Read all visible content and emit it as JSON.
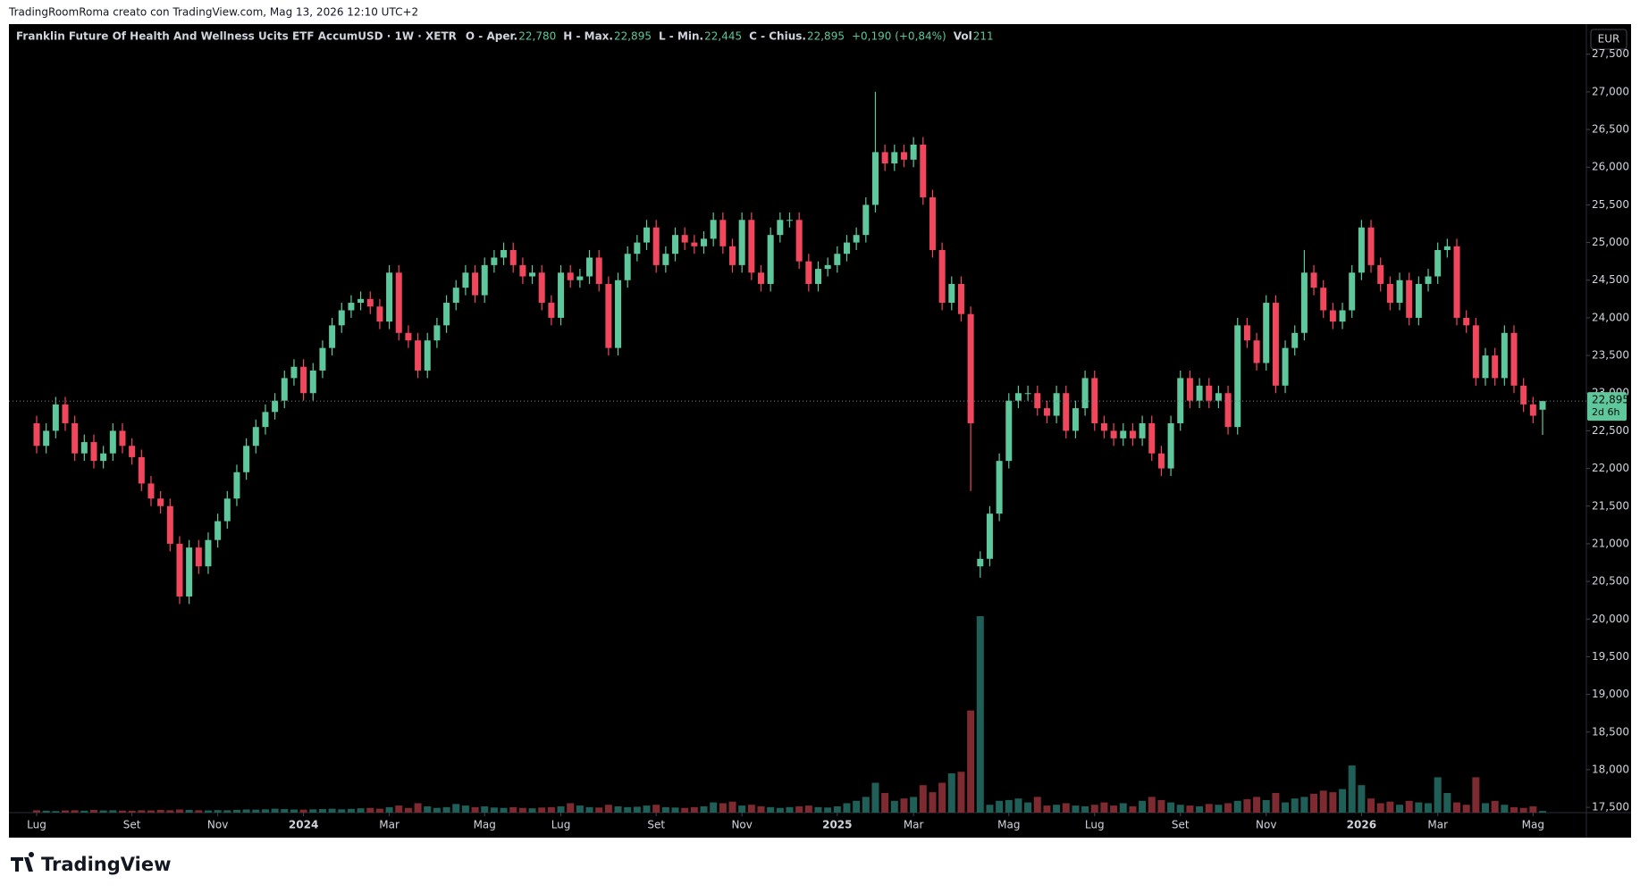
{
  "header": {
    "credit": "TradingRoomRoma creato con TradingView.com, Mag 13, 2026 12:10 UTC+2",
    "logo": "TradingView"
  },
  "legend": {
    "symbol": "Franklin Future Of Health And Wellness Ucits ETF AccumUSD · 1W · XETR",
    "open_label": "O - Aper.",
    "open": "22,780",
    "high_label": "H - Max.",
    "high": "22,895",
    "low_label": "L - Min.",
    "low": "22,445",
    "close_label": "C - Chius.",
    "close": "22,895",
    "change": "+0,190 (+0,84%)",
    "vol_label": "Vol",
    "vol": "211"
  },
  "price_scale": {
    "currency": "EUR",
    "last_price": "22,895",
    "countdown": "2d 6h"
  },
  "chart_data": {
    "type": "candlestick",
    "categories": [
      "Lug",
      null,
      null,
      null,
      null,
      null,
      null,
      null,
      null,
      null,
      "Set",
      null,
      null,
      null,
      null,
      null,
      null,
      null,
      null,
      "Nov",
      null,
      null,
      null,
      null,
      null,
      null,
      null,
      null,
      "2024",
      null,
      null,
      null,
      null,
      null,
      null,
      null,
      null,
      "Mar",
      null,
      null,
      null,
      null,
      null,
      null,
      null,
      null,
      null,
      "Mag",
      null,
      null,
      null,
      null,
      null,
      null,
      null,
      "Lug",
      null,
      null,
      null,
      null,
      null,
      null,
      null,
      null,
      null,
      "Set",
      null,
      null,
      null,
      null,
      null,
      null,
      null,
      null,
      "Nov",
      null,
      null,
      null,
      null,
      null,
      null,
      null,
      null,
      null,
      "2025",
      null,
      null,
      null,
      null,
      null,
      null,
      null,
      "Mar",
      null,
      null,
      null,
      null,
      null,
      null,
      null,
      null,
      null,
      "Mag",
      null,
      null,
      null,
      null,
      null,
      null,
      null,
      null,
      "Lug",
      null,
      null,
      null,
      null,
      null,
      null,
      null,
      null,
      "Set",
      null,
      null,
      null,
      null,
      null,
      null,
      null,
      null,
      "Nov",
      null,
      null,
      null,
      null,
      null,
      null,
      null,
      null,
      null,
      "2026",
      null,
      null,
      null,
      null,
      null,
      null,
      null,
      "Mar",
      null,
      null,
      null,
      null,
      null,
      null,
      null,
      null,
      null,
      "Mag",
      null
    ],
    "open": [
      22.6,
      22.3,
      22.5,
      22.85,
      22.6,
      22.2,
      22.35,
      22.1,
      22.2,
      22.5,
      22.3,
      22.15,
      21.8,
      21.6,
      21.5,
      21.0,
      20.3,
      20.95,
      20.7,
      21.05,
      21.3,
      21.6,
      21.95,
      22.3,
      22.55,
      22.75,
      22.9,
      23.2,
      23.35,
      23.0,
      23.3,
      23.6,
      23.9,
      24.1,
      24.2,
      24.25,
      24.15,
      23.95,
      24.6,
      23.8,
      23.7,
      23.3,
      23.7,
      23.9,
      24.2,
      24.4,
      24.6,
      24.3,
      24.7,
      24.8,
      24.9,
      24.7,
      24.55,
      24.6,
      24.2,
      24.0,
      24.6,
      24.5,
      24.55,
      24.8,
      24.45,
      23.6,
      24.5,
      24.85,
      25.0,
      25.2,
      24.7,
      24.85,
      25.1,
      25.0,
      24.95,
      25.05,
      25.3,
      24.95,
      24.7,
      25.3,
      24.6,
      24.45,
      25.1,
      25.3,
      25.3,
      24.75,
      24.45,
      24.65,
      24.7,
      24.85,
      25.0,
      25.1,
      25.5,
      26.2,
      26.05,
      26.2,
      26.1,
      26.3,
      25.6,
      24.9,
      24.2,
      24.45,
      24.05,
      20.7,
      20.8,
      21.4,
      22.1,
      22.9,
      23.0,
      23.0,
      22.8,
      22.7,
      23.0,
      22.5,
      22.8,
      23.2,
      22.6,
      22.5,
      22.4,
      22.5,
      22.4,
      22.6,
      22.2,
      22.0,
      22.6,
      23.2,
      22.9,
      23.1,
      22.9,
      23.0,
      22.55,
      23.9,
      23.7,
      23.4,
      24.2,
      23.1,
      23.6,
      23.8,
      24.6,
      24.4,
      24.1,
      23.95,
      24.1,
      24.6,
      25.2,
      24.7,
      24.45,
      24.2,
      24.5,
      24.0,
      24.45,
      24.55,
      24.9,
      24.95,
      24.0,
      23.9,
      23.2,
      23.5,
      23.2,
      23.8,
      23.1,
      22.85,
      22.78
    ],
    "high": [
      22.7,
      22.6,
      22.95,
      22.95,
      22.7,
      22.45,
      22.45,
      22.3,
      22.6,
      22.6,
      22.4,
      22.25,
      21.9,
      21.7,
      21.6,
      21.1,
      21.05,
      21.05,
      21.15,
      21.4,
      21.7,
      22.05,
      22.4,
      22.65,
      22.85,
      23.0,
      23.3,
      23.45,
      23.45,
      23.4,
      23.7,
      24.0,
      24.2,
      24.3,
      24.35,
      24.35,
      24.25,
      24.7,
      24.7,
      23.9,
      23.8,
      23.8,
      24.0,
      24.3,
      24.5,
      24.7,
      24.7,
      24.8,
      24.9,
      25.0,
      25.0,
      24.8,
      24.7,
      24.7,
      24.3,
      24.7,
      24.7,
      24.65,
      24.9,
      24.9,
      24.55,
      24.6,
      24.95,
      25.1,
      25.3,
      25.3,
      24.95,
      25.2,
      25.2,
      25.1,
      25.15,
      25.4,
      25.4,
      25.05,
      25.4,
      25.4,
      24.7,
      25.2,
      25.4,
      25.4,
      25.4,
      24.85,
      24.75,
      24.8,
      24.95,
      25.1,
      25.2,
      25.6,
      27.0,
      26.3,
      26.3,
      26.3,
      26.4,
      26.4,
      25.7,
      25.0,
      24.55,
      24.55,
      24.15,
      20.9,
      21.5,
      22.2,
      23.0,
      23.1,
      23.1,
      23.1,
      22.9,
      23.1,
      23.1,
      22.9,
      23.3,
      23.3,
      22.7,
      22.6,
      22.6,
      22.6,
      22.7,
      22.7,
      22.3,
      22.7,
      23.3,
      23.3,
      23.2,
      23.2,
      23.1,
      23.1,
      24.0,
      24.0,
      23.8,
      24.3,
      24.3,
      23.7,
      23.9,
      24.9,
      24.7,
      24.5,
      24.2,
      24.2,
      24.7,
      25.3,
      25.3,
      24.8,
      24.55,
      24.6,
      24.6,
      24.55,
      24.65,
      25.0,
      25.05,
      25.05,
      24.1,
      24.0,
      23.6,
      23.6,
      23.9,
      23.9,
      23.2,
      22.95,
      22.895
    ],
    "low": [
      22.2,
      22.2,
      22.4,
      22.5,
      22.1,
      22.1,
      22.0,
      22.0,
      22.1,
      22.2,
      22.05,
      21.7,
      21.5,
      21.4,
      20.9,
      20.2,
      20.2,
      20.6,
      20.6,
      20.95,
      21.2,
      21.5,
      21.85,
      22.2,
      22.45,
      22.65,
      22.8,
      23.1,
      22.9,
      22.9,
      23.2,
      23.5,
      23.8,
      24.0,
      24.1,
      24.05,
      23.85,
      23.85,
      23.7,
      23.6,
      23.2,
      23.2,
      23.6,
      23.8,
      24.1,
      24.3,
      24.2,
      24.2,
      24.6,
      24.7,
      24.6,
      24.45,
      24.45,
      24.1,
      23.9,
      23.9,
      24.4,
      24.4,
      24.45,
      24.35,
      23.5,
      23.5,
      24.4,
      24.75,
      24.9,
      24.6,
      24.6,
      24.75,
      24.9,
      24.85,
      24.85,
      24.95,
      24.85,
      24.6,
      24.6,
      24.5,
      24.35,
      24.35,
      25.0,
      25.2,
      24.65,
      24.35,
      24.35,
      24.55,
      24.6,
      24.75,
      24.9,
      25.0,
      25.4,
      25.95,
      25.95,
      26.0,
      26.0,
      25.5,
      24.8,
      24.1,
      24.1,
      23.95,
      21.7,
      20.55,
      20.7,
      21.3,
      22.0,
      22.8,
      22.9,
      22.7,
      22.6,
      22.6,
      22.4,
      22.4,
      22.7,
      22.5,
      22.4,
      22.3,
      22.3,
      22.3,
      22.3,
      22.1,
      21.9,
      21.9,
      22.5,
      22.8,
      22.8,
      22.8,
      22.8,
      22.45,
      22.45,
      23.6,
      23.3,
      23.3,
      23.0,
      23.0,
      23.5,
      23.7,
      24.3,
      24.0,
      23.85,
      23.85,
      24.0,
      24.5,
      24.6,
      24.35,
      24.1,
      24.1,
      23.9,
      23.9,
      24.35,
      24.45,
      24.8,
      23.9,
      23.8,
      23.1,
      23.1,
      23.1,
      23.1,
      23.0,
      22.75,
      22.6,
      22.445
    ],
    "close": [
      22.3,
      22.5,
      22.85,
      22.6,
      22.2,
      22.35,
      22.1,
      22.2,
      22.5,
      22.3,
      22.15,
      21.8,
      21.6,
      21.5,
      21.0,
      20.3,
      20.95,
      20.7,
      21.05,
      21.3,
      21.6,
      21.95,
      22.3,
      22.55,
      22.75,
      22.9,
      23.2,
      23.35,
      23.0,
      23.3,
      23.6,
      23.9,
      24.1,
      24.2,
      24.25,
      24.15,
      23.95,
      24.6,
      23.8,
      23.7,
      23.3,
      23.7,
      23.9,
      24.2,
      24.4,
      24.6,
      24.3,
      24.7,
      24.8,
      24.9,
      24.7,
      24.55,
      24.6,
      24.2,
      24.0,
      24.6,
      24.5,
      24.55,
      24.8,
      24.45,
      23.6,
      24.5,
      24.85,
      25.0,
      25.2,
      24.7,
      24.85,
      25.1,
      25.0,
      24.95,
      25.05,
      25.3,
      24.95,
      24.7,
      25.3,
      24.6,
      24.45,
      25.1,
      25.3,
      25.3,
      24.75,
      24.45,
      24.65,
      24.7,
      24.85,
      25.0,
      25.1,
      25.5,
      26.2,
      26.05,
      26.2,
      26.1,
      26.3,
      25.6,
      24.9,
      24.2,
      24.45,
      24.05,
      22.6,
      20.8,
      21.4,
      22.1,
      22.9,
      23.0,
      23.0,
      22.8,
      22.7,
      23.0,
      22.5,
      22.8,
      23.2,
      22.6,
      22.5,
      22.4,
      22.5,
      22.4,
      22.6,
      22.2,
      22.0,
      22.6,
      23.2,
      22.9,
      23.1,
      22.9,
      23.0,
      22.55,
      23.9,
      23.7,
      23.4,
      24.2,
      23.1,
      23.6,
      23.8,
      24.6,
      24.4,
      24.1,
      23.95,
      24.1,
      24.6,
      25.2,
      24.7,
      24.45,
      24.2,
      24.5,
      24.0,
      24.45,
      24.55,
      24.9,
      24.95,
      24.0,
      23.9,
      23.2,
      23.5,
      23.2,
      23.8,
      23.1,
      22.85,
      22.7,
      22.895
    ],
    "volume": [
      300,
      250,
      200,
      280,
      300,
      250,
      350,
      280,
      300,
      260,
      250,
      300,
      280,
      350,
      300,
      400,
      350,
      300,
      280,
      320,
      300,
      350,
      400,
      380,
      420,
      500,
      450,
      400,
      380,
      420,
      450,
      500,
      420,
      480,
      550,
      600,
      500,
      700,
      900,
      600,
      1200,
      800,
      600,
      700,
      1100,
      900,
      700,
      800,
      650,
      600,
      700,
      600,
      550,
      650,
      700,
      800,
      1200,
      900,
      700,
      650,
      1000,
      800,
      700,
      750,
      900,
      1000,
      700,
      650,
      600,
      700,
      800,
      1300,
      1200,
      1400,
      900,
      1000,
      800,
      700,
      600,
      700,
      800,
      900,
      700,
      650,
      800,
      1200,
      1500,
      2000,
      3800,
      2500,
      1500,
      1800,
      2000,
      3500,
      2600,
      3800,
      5000,
      5200,
      13000,
      25000,
      1000,
      1500,
      1600,
      1800,
      1300,
      2000,
      900,
      1000,
      1200,
      900,
      800,
      1000,
      1300,
      900,
      1200,
      800,
      1500,
      2000,
      1600,
      1300,
      1000,
      900,
      800,
      1100,
      1000,
      1200,
      1500,
      1700,
      2000,
      1600,
      2500,
      1300,
      1800,
      2000,
      2400,
      2800,
      2600,
      3000,
      6000,
      3500,
      1800,
      1200,
      1400,
      1000,
      1500,
      1300,
      1200,
      4500,
      2500,
      1300,
      1000,
      4500,
      1200,
      1500,
      1000,
      700,
      600,
      800,
      211
    ],
    "up_color": "#5ec79b",
    "down_color": "#f0475d",
    "volume_up_color": "#1f5f58",
    "volume_down_color": "#7d2b31",
    "ylim": [
      17.43,
      27.9
    ],
    "yticks": [
      {
        "value": 17.5,
        "label": "17,500"
      },
      {
        "value": 18,
        "label": "18,000"
      },
      {
        "value": 18.5,
        "label": "18,500"
      },
      {
        "value": 19,
        "label": "19,000"
      },
      {
        "value": 19.5,
        "label": "19,500"
      },
      {
        "value": 20,
        "label": "20,000"
      },
      {
        "value": 20.5,
        "label": "20,500"
      },
      {
        "value": 21,
        "label": "21,000"
      },
      {
        "value": 21.5,
        "label": "21,500"
      },
      {
        "value": 22,
        "label": "22,000"
      },
      {
        "value": 22.5,
        "label": "22,500"
      },
      {
        "value": 23,
        "label": "23,000"
      },
      {
        "value": 23.5,
        "label": "23,500"
      },
      {
        "value": 24,
        "label": "24,000"
      },
      {
        "value": 24.5,
        "label": "24,500"
      },
      {
        "value": 25,
        "label": "25,000"
      },
      {
        "value": 25.5,
        "label": "25,500"
      },
      {
        "value": 26,
        "label": "26,000"
      },
      {
        "value": 26.5,
        "label": "26,500"
      },
      {
        "value": 27,
        "label": "27,000"
      },
      {
        "value": 27.5,
        "label": "27,500"
      }
    ],
    "grid": false
  }
}
